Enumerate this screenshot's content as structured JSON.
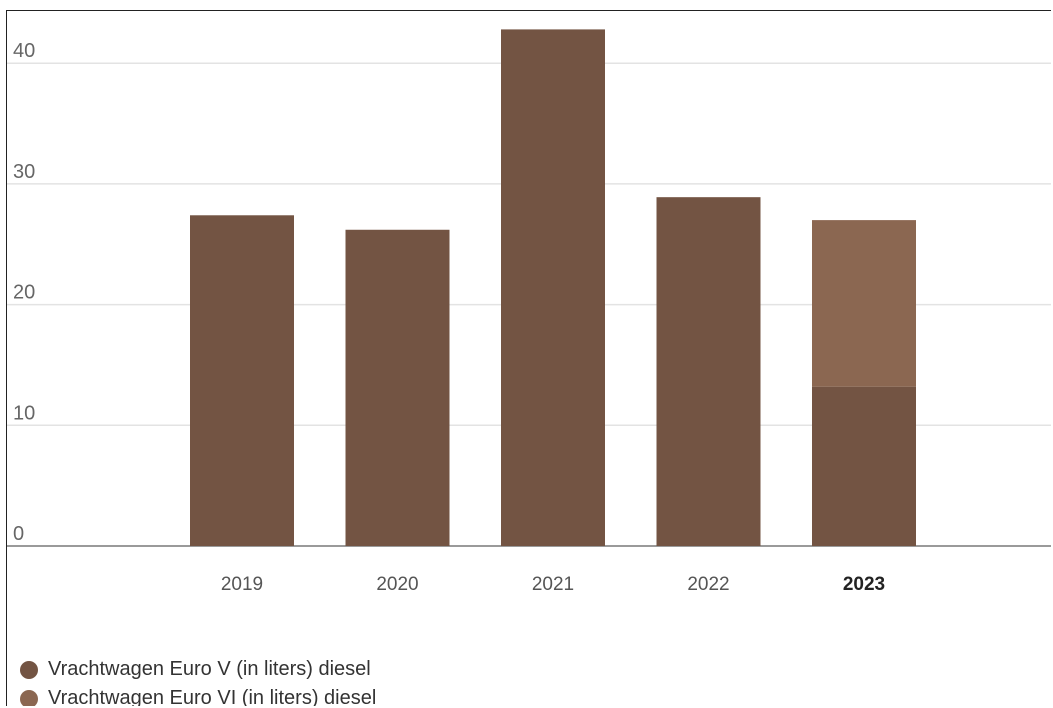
{
  "chart_data": {
    "type": "bar",
    "stacked": true,
    "categories": [
      "2019",
      "2020",
      "2021",
      "2022",
      "2023"
    ],
    "highlight_category": "2023",
    "series": [
      {
        "name": "Vrachtwagen Euro V (in liters) diesel",
        "color": "#735443",
        "values": [
          27.4,
          26.2,
          42.8,
          28.9,
          13.2
        ]
      },
      {
        "name": "Vrachtwagen Euro VI (in liters) diesel",
        "color": "#8b6751",
        "values": [
          0,
          0,
          0,
          0,
          13.8
        ]
      }
    ],
    "yticks": [
      "0",
      "10",
      "20",
      "30",
      "40"
    ],
    "ylim": [
      0,
      45
    ],
    "grid": true,
    "legend_position": "bottom-left",
    "title": "",
    "xlabel": "",
    "ylabel": ""
  }
}
